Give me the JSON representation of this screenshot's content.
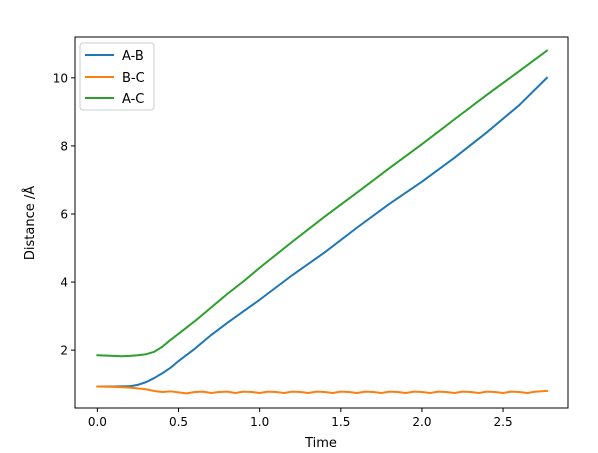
{
  "chart_data": {
    "type": "line",
    "title": "",
    "xlabel": "Time",
    "ylabel": "Distance /Å",
    "xlim": [
      -0.138,
      2.9
    ],
    "ylim": [
      0.3,
      11.2
    ],
    "x_ticks": [
      0.0,
      0.5,
      1.0,
      1.5,
      2.0,
      2.5
    ],
    "x_tick_labels": [
      "0.0",
      "0.5",
      "1.0",
      "1.5",
      "2.0",
      "2.5"
    ],
    "y_ticks": [
      2,
      4,
      6,
      8,
      10
    ],
    "y_tick_labels": [
      "2",
      "4",
      "6",
      "8",
      "10"
    ],
    "grid": false,
    "legend_position": "top-left",
    "series": [
      {
        "name": "A-B",
        "color": "#1f77b4",
        "x": [
          0.0,
          0.1,
          0.2,
          0.25,
          0.3,
          0.35,
          0.4,
          0.45,
          0.5,
          0.6,
          0.7,
          0.8,
          0.9,
          1.0,
          1.2,
          1.4,
          1.6,
          1.8,
          2.0,
          2.2,
          2.4,
          2.6,
          2.77
        ],
        "y": [
          0.93,
          0.93,
          0.94,
          0.98,
          1.06,
          1.18,
          1.32,
          1.48,
          1.68,
          2.04,
          2.44,
          2.8,
          3.14,
          3.48,
          4.2,
          4.87,
          5.6,
          6.3,
          6.95,
          7.65,
          8.4,
          9.2,
          10.0
        ]
      },
      {
        "name": "B-C",
        "color": "#ff7f0e",
        "x": [
          0.0,
          0.1,
          0.2,
          0.3,
          0.35,
          0.4,
          0.45,
          0.5,
          0.55,
          0.6,
          0.65,
          0.7,
          0.75,
          0.8,
          0.85,
          0.9,
          0.95,
          1.0,
          1.05,
          1.1,
          1.15,
          1.2,
          1.25,
          1.3,
          1.35,
          1.4,
          1.45,
          1.5,
          1.55,
          1.6,
          1.65,
          1.7,
          1.75,
          1.8,
          1.85,
          1.9,
          1.95,
          2.0,
          2.05,
          2.1,
          2.15,
          2.2,
          2.25,
          2.3,
          2.35,
          2.4,
          2.45,
          2.5,
          2.55,
          2.6,
          2.65,
          2.7,
          2.77
        ],
        "y": [
          0.93,
          0.92,
          0.9,
          0.85,
          0.8,
          0.77,
          0.79,
          0.76,
          0.73,
          0.77,
          0.78,
          0.74,
          0.77,
          0.78,
          0.74,
          0.78,
          0.77,
          0.74,
          0.78,
          0.77,
          0.74,
          0.78,
          0.77,
          0.74,
          0.78,
          0.77,
          0.74,
          0.78,
          0.77,
          0.74,
          0.78,
          0.77,
          0.74,
          0.78,
          0.77,
          0.74,
          0.78,
          0.77,
          0.74,
          0.78,
          0.77,
          0.74,
          0.78,
          0.77,
          0.74,
          0.78,
          0.77,
          0.74,
          0.78,
          0.77,
          0.74,
          0.78,
          0.8
        ]
      },
      {
        "name": "A-C",
        "color": "#2ca02c",
        "x": [
          0.0,
          0.1,
          0.15,
          0.2,
          0.25,
          0.3,
          0.35,
          0.4,
          0.45,
          0.5,
          0.6,
          0.7,
          0.8,
          0.9,
          1.0,
          1.2,
          1.4,
          1.6,
          1.8,
          2.0,
          2.2,
          2.4,
          2.6,
          2.77
        ],
        "y": [
          1.85,
          1.83,
          1.82,
          1.83,
          1.85,
          1.88,
          1.95,
          2.1,
          2.3,
          2.48,
          2.85,
          3.25,
          3.65,
          4.02,
          4.42,
          5.18,
          5.92,
          6.63,
          7.35,
          8.05,
          8.78,
          9.5,
          10.2,
          10.8
        ]
      }
    ]
  }
}
